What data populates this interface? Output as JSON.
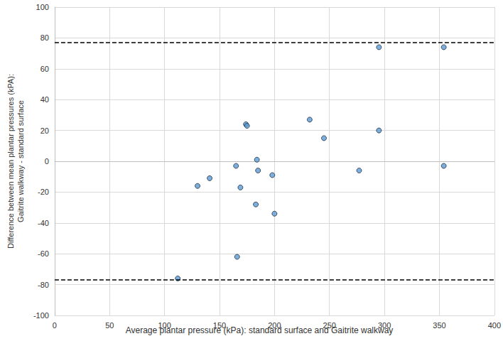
{
  "chart_data": {
    "type": "scatter",
    "x_label": "Average plantar pressure (kPa): standard surface and Gaitrite walkway",
    "y_label": "Difference between mean plantar pressures (kPA):\nGaitrite walkway - standard surface",
    "x": [
      112,
      130,
      141,
      165,
      166,
      169,
      174,
      175,
      183,
      184,
      185,
      198,
      200,
      232,
      245,
      277,
      295,
      295,
      354,
      354
    ],
    "values": [
      -76,
      -16,
      -11,
      -3,
      -62,
      -17,
      24,
      23,
      -28,
      1,
      -6,
      -9,
      -34,
      27,
      15,
      -6,
      74,
      20,
      74,
      -3
    ],
    "limits_of_agreement": [
      77,
      -77
    ],
    "color": "#5b9bd5",
    "marker": "circle",
    "xlim": [
      0,
      400
    ],
    "xticks": [
      0,
      50,
      100,
      150,
      200,
      250,
      300,
      350,
      400
    ],
    "ylim": [
      -100,
      100
    ],
    "yticks": [
      -100,
      -80,
      -60,
      -40,
      -20,
      0,
      20,
      40,
      60,
      80,
      100
    ],
    "grid": true
  }
}
